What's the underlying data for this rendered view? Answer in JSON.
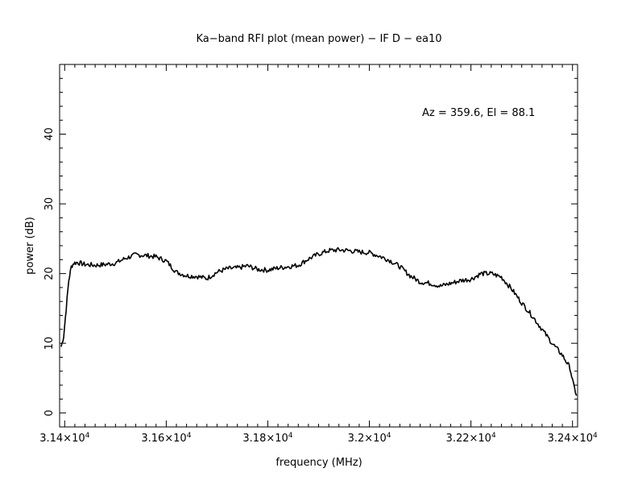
{
  "chart_data": {
    "type": "line",
    "title": "Ka−band RFI plot (mean power) − IF D − ea10",
    "xlabel": "frequency (MHz)",
    "ylabel": "power (dB)",
    "annotation": "Az = 359.6, El = 88.1",
    "xlim": [
      31390,
      32410
    ],
    "ylim": [
      -2,
      50
    ],
    "x_ticks": [
      {
        "value": 31400,
        "label": "3.14×10",
        "exp": "4"
      },
      {
        "value": 31600,
        "label": "3.16×10",
        "exp": "4"
      },
      {
        "value": 31800,
        "label": "3.18×10",
        "exp": "4"
      },
      {
        "value": 32000,
        "label": "3.2×10",
        "exp": "4"
      },
      {
        "value": 32200,
        "label": "3.22×10",
        "exp": "4"
      },
      {
        "value": 32400,
        "label": "3.24×10",
        "exp": "4"
      }
    ],
    "y_ticks": [
      {
        "value": 0,
        "label": "0"
      },
      {
        "value": 10,
        "label": "10"
      },
      {
        "value": 20,
        "label": "20"
      },
      {
        "value": 30,
        "label": "30"
      },
      {
        "value": 40,
        "label": "40"
      }
    ],
    "grid": false,
    "line_color": "#000000",
    "series": [
      {
        "x": [
          31393,
          31398,
          31403,
          31408,
          31413,
          31418,
          31425,
          31440,
          31460,
          31480,
          31500,
          31520,
          31540,
          31560,
          31580,
          31600,
          31620,
          31640,
          31660,
          31680,
          31700,
          31720,
          31740,
          31760,
          31780,
          31800,
          31820,
          31840,
          31860,
          31880,
          31900,
          31920,
          31940,
          31960,
          31980,
          32000,
          32020,
          32040,
          32060,
          32080,
          32100,
          32120,
          32140,
          32160,
          32180,
          32200,
          32220,
          32240,
          32260,
          32280,
          32300,
          32320,
          32340,
          32360,
          32380,
          32395,
          32402,
          32408
        ],
        "y": [
          9.5,
          11,
          15,
          19,
          21,
          21.5,
          21.6,
          21.3,
          21.2,
          21.3,
          21.5,
          22.2,
          22.7,
          22.6,
          22.4,
          21.8,
          20.2,
          19.7,
          19.6,
          19.3,
          20.2,
          20.7,
          20.8,
          21.1,
          20.6,
          20.5,
          20.8,
          21.0,
          21.2,
          22.1,
          22.8,
          23.3,
          23.4,
          23.3,
          23.1,
          23.0,
          22.5,
          21.9,
          21.0,
          19.7,
          18.8,
          18.6,
          18.2,
          18.6,
          19.0,
          19.2,
          20.0,
          20.0,
          19.5,
          17.8,
          15.8,
          14.0,
          12.0,
          10.0,
          8.3,
          6.5,
          4.0,
          2.5
        ]
      }
    ]
  }
}
